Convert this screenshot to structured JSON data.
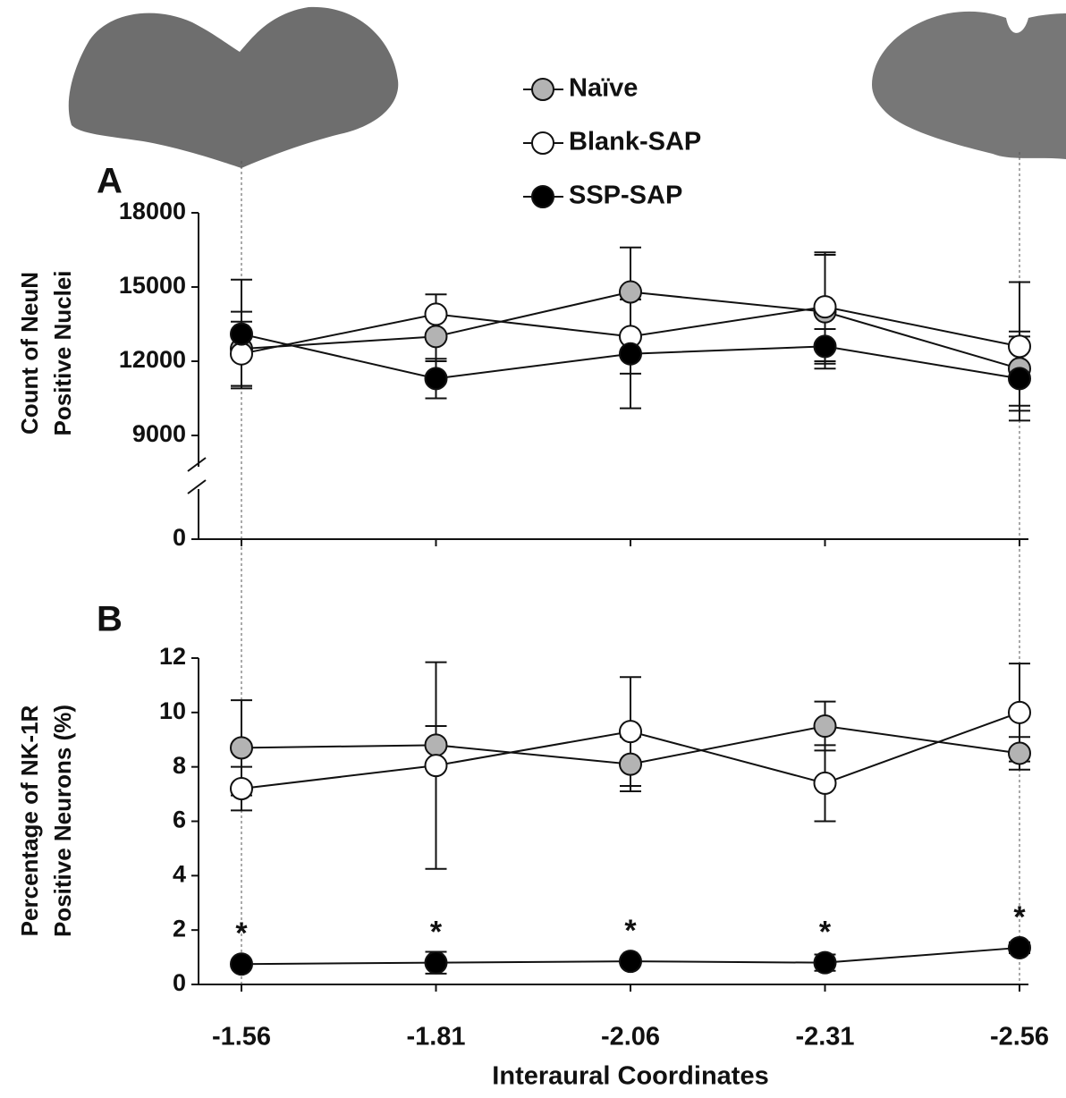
{
  "chart_data": [
    {
      "type": "line",
      "panel_label": "A",
      "ylabel": [
        "Count of NeuN",
        "Positive Nuclei"
      ],
      "ylim": [
        0,
        18000
      ],
      "yticks": [
        0,
        9000,
        12000,
        15000,
        18000
      ],
      "axis_break": [
        0,
        9000
      ],
      "legend": "top",
      "series": [
        {
          "name": "Naïve",
          "color": "#b3b3b3",
          "values": [
            12500,
            13000,
            14800,
            14000,
            11700
          ],
          "errors": [
            1500,
            1000,
            1800,
            2300,
            1500
          ]
        },
        {
          "name": "Blank-SAP",
          "color": "#ffffff",
          "values": [
            12300,
            13900,
            13000,
            14200,
            12600
          ],
          "errors": [
            1300,
            800,
            1500,
            2200,
            2600
          ]
        },
        {
          "name": "SSP-SAP",
          "color": "#000000",
          "values": [
            13100,
            11300,
            12300,
            12600,
            11300
          ],
          "errors": [
            2200,
            800,
            2200,
            700,
            1700
          ]
        }
      ]
    },
    {
      "type": "line",
      "panel_label": "B",
      "ylabel": [
        "Percentage of NK-1R",
        "Positive Neurons (%)"
      ],
      "xlabel": "Interaural Coordinates",
      "categories": [
        "-1.56",
        "-1.81",
        "-2.06",
        "-2.31",
        "-2.56"
      ],
      "ylim": [
        0,
        12
      ],
      "yticks": [
        0,
        2,
        4,
        6,
        8,
        10,
        12
      ],
      "annotations": [
        "*",
        "*",
        "*",
        "*",
        "*"
      ],
      "series": [
        {
          "name": "Naïve",
          "color": "#b3b3b3",
          "values": [
            8.7,
            8.8,
            8.1,
            9.5,
            8.5
          ],
          "errors": [
            1.75,
            0.7,
            1.0,
            0.9,
            0.6
          ]
        },
        {
          "name": "Blank-SAP",
          "color": "#ffffff",
          "values": [
            7.2,
            8.05,
            9.3,
            7.4,
            10.0
          ],
          "errors": [
            0.8,
            3.8,
            2.0,
            1.4,
            1.8
          ]
        },
        {
          "name": "SSP-SAP",
          "color": "#000000",
          "values": [
            0.75,
            0.8,
            0.85,
            0.8,
            1.35
          ],
          "errors": [
            0.1,
            0.4,
            0.1,
            0.3,
            0.2
          ]
        }
      ]
    }
  ]
}
